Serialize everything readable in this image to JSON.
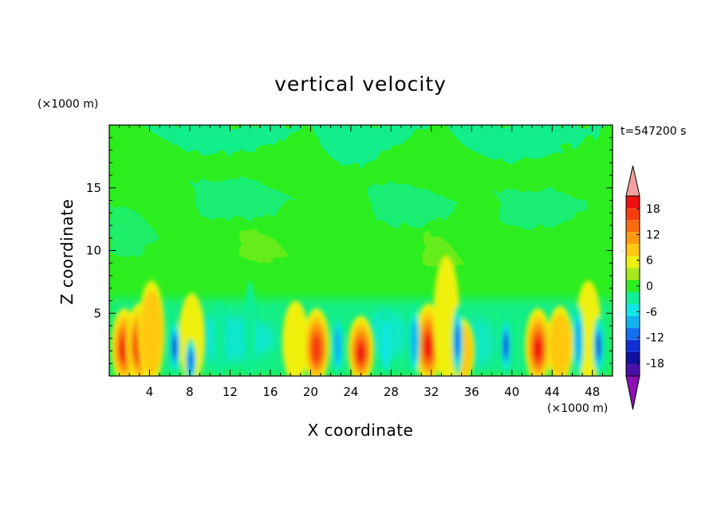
{
  "chart_data": {
    "type": "heatmap",
    "title": "vertical velocity",
    "xlabel": "X coordinate",
    "ylabel": "Z coordinate",
    "x_unit": "(×1000 m)",
    "y_unit": "(×1000 m)",
    "time_label": "t=547200 s",
    "xlim": [
      0,
      50
    ],
    "ylim": [
      0,
      20
    ],
    "x_ticks": [
      4,
      8,
      12,
      16,
      20,
      24,
      28,
      32,
      36,
      40,
      44,
      48
    ],
    "y_ticks": [
      5,
      10,
      15
    ],
    "colorbar": {
      "ticks": [
        18,
        12,
        6,
        0,
        -6,
        -12,
        -18
      ],
      "levels": [
        21,
        18,
        15,
        12,
        9,
        6,
        3,
        0,
        -3,
        -6,
        -9,
        -12,
        -15,
        -18,
        -21
      ],
      "colors": [
        "#ee1010",
        "#f73d10",
        "#fa6a10",
        "#fd9a10",
        "#fec810",
        "#f0f010",
        "#a8e81c",
        "#2cee1e",
        "#10ee96",
        "#10e6e6",
        "#10b4f0",
        "#1470f0",
        "#1030d6",
        "#1010a0",
        "#4a10a8"
      ],
      "over_color": "#f5a0a0",
      "under_color": "#8a10b4"
    },
    "updrafts": [
      {
        "x": 1.5,
        "z": 2.4,
        "w": 20
      },
      {
        "x": 3.0,
        "z": 2.6,
        "w": 19
      },
      {
        "x": 4.2,
        "z": 3.5,
        "w": 8
      },
      {
        "x": 8.2,
        "z": 3.0,
        "w": 5
      },
      {
        "x": 18.5,
        "z": 2.7,
        "w": 7
      },
      {
        "x": 20.6,
        "z": 2.4,
        "w": 19
      },
      {
        "x": 25.0,
        "z": 2.1,
        "w": 20
      },
      {
        "x": 31.7,
        "z": 2.6,
        "w": 20
      },
      {
        "x": 33.5,
        "z": 4.5,
        "w": 5
      },
      {
        "x": 35.0,
        "z": 2.0,
        "w": 8
      },
      {
        "x": 42.6,
        "z": 2.4,
        "w": 20
      },
      {
        "x": 44.8,
        "z": 2.5,
        "w": 9
      },
      {
        "x": 47.6,
        "z": 3.5,
        "w": 4
      }
    ],
    "downdrafts": [
      {
        "x": 6.5,
        "z": 2.3,
        "w": -18
      },
      {
        "x": 8.1,
        "z": 1.2,
        "w": -15
      },
      {
        "x": 11.0,
        "z": 3.0,
        "w": -6
      },
      {
        "x": 14.0,
        "z": 3.8,
        "w": -5
      },
      {
        "x": 22.7,
        "z": 2.4,
        "w": -12
      },
      {
        "x": 27.5,
        "z": 2.5,
        "w": -9
      },
      {
        "x": 30.3,
        "z": 2.8,
        "w": -13
      },
      {
        "x": 34.6,
        "z": 2.8,
        "w": -14
      },
      {
        "x": 39.4,
        "z": 2.4,
        "w": -17
      },
      {
        "x": 46.6,
        "z": 2.8,
        "w": -13
      },
      {
        "x": 48.6,
        "z": 2.4,
        "w": -17
      }
    ]
  }
}
